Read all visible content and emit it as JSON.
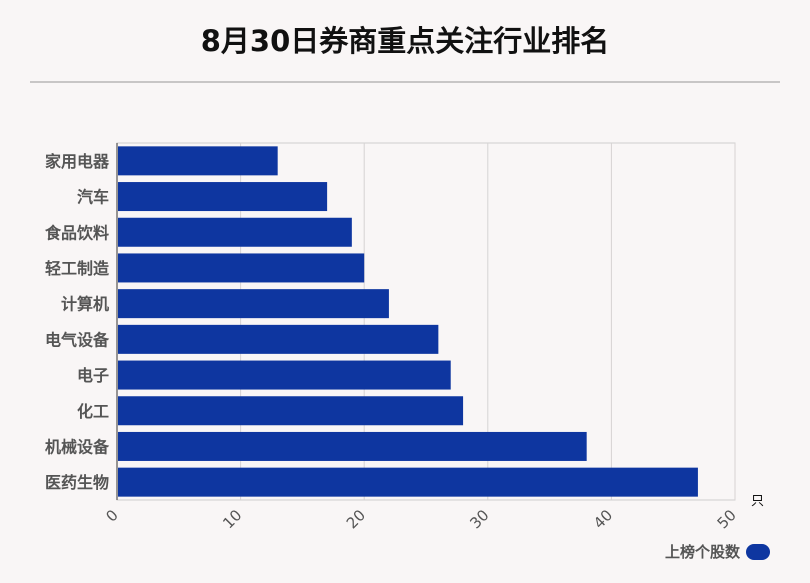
{
  "chart_data": {
    "type": "bar",
    "orientation": "horizontal",
    "title": "8月30日券商重点关注行业排名",
    "categories": [
      "家用电器",
      "汽车",
      "食品饮料",
      "轻工制造",
      "计算机",
      "电气设备",
      "电子",
      "化工",
      "机械设备",
      "医药生物"
    ],
    "series": [
      {
        "name": "上榜个股数",
        "values": [
          13,
          17,
          19,
          20,
          22,
          26,
          27,
          28,
          38,
          47
        ]
      }
    ],
    "x_ticks": [
      "0",
      "10",
      "20",
      "30",
      "40",
      "50"
    ],
    "xlim": [
      0,
      50
    ],
    "x_unit": "只",
    "grid": true,
    "legend_position": "bottom-right",
    "bar_color": "#0e36a0"
  }
}
